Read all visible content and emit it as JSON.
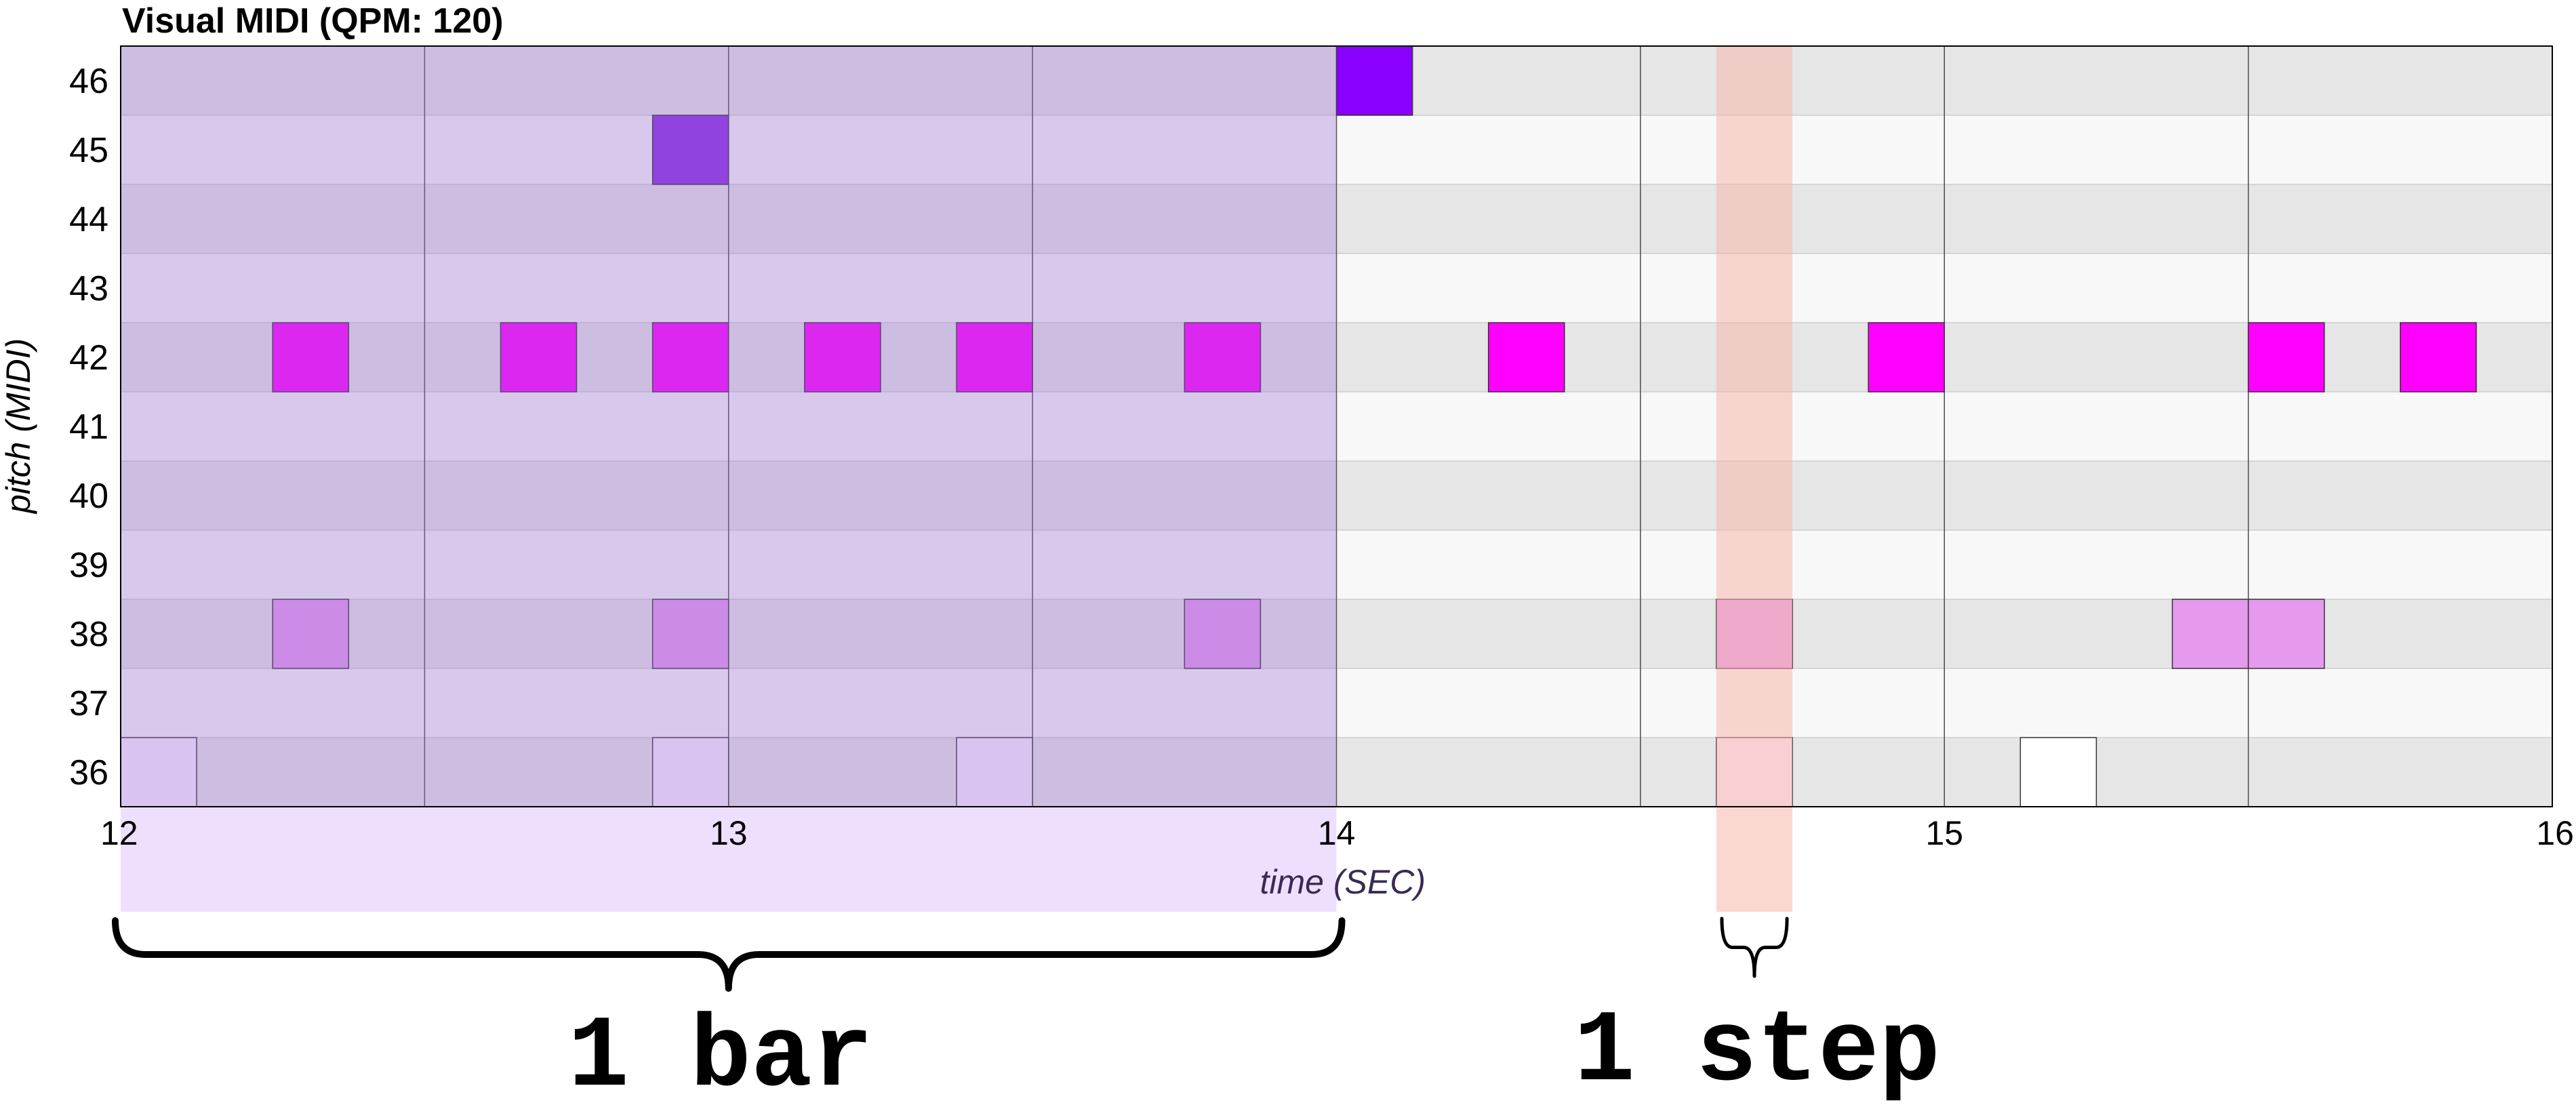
{
  "chart_data": {
    "type": "piano-roll",
    "title": "Visual MIDI (QPM: 120)",
    "xlabel": "time (SEC)",
    "ylabel": "pitch (MIDI)",
    "xlim": [
      12,
      16
    ],
    "ylim": [
      36,
      46
    ],
    "x_ticks": [
      "12",
      "13",
      "14",
      "15",
      "16"
    ],
    "y_ticks": [
      "36",
      "37",
      "38",
      "39",
      "40",
      "41",
      "42",
      "43",
      "44",
      "45",
      "46"
    ],
    "step_seconds": 0.125,
    "beat_seconds": 0.5,
    "bar_seconds": 2,
    "highlights": {
      "bar": {
        "start": 12,
        "end": 14,
        "label": "1 bar",
        "color": "#9b6fd6"
      },
      "step": {
        "start": 14.625,
        "end": 14.75,
        "label": "1 step",
        "color": "#f8b7ad"
      }
    },
    "notes": [
      {
        "pitch": 46,
        "start": 14.0,
        "end": 14.125,
        "color": "#8a00ff"
      },
      {
        "pitch": 45,
        "start": 12.875,
        "end": 13.0,
        "color": "#8b2be2"
      },
      {
        "pitch": 42,
        "start": 12.25,
        "end": 12.375,
        "color": "#ff00ff"
      },
      {
        "pitch": 42,
        "start": 12.625,
        "end": 12.75,
        "color": "#ff00ff"
      },
      {
        "pitch": 42,
        "start": 12.875,
        "end": 13.0,
        "color": "#ff00ff"
      },
      {
        "pitch": 42,
        "start": 13.125,
        "end": 13.25,
        "color": "#ff00ff"
      },
      {
        "pitch": 42,
        "start": 13.375,
        "end": 13.5,
        "color": "#ff00ff"
      },
      {
        "pitch": 42,
        "start": 13.75,
        "end": 13.875,
        "color": "#ff00ff"
      },
      {
        "pitch": 42,
        "start": 14.25,
        "end": 14.375,
        "color": "#ff00ff"
      },
      {
        "pitch": 42,
        "start": 14.875,
        "end": 15.0,
        "color": "#ff00ff"
      },
      {
        "pitch": 42,
        "start": 15.5,
        "end": 15.625,
        "color": "#ff00ff"
      },
      {
        "pitch": 42,
        "start": 15.75,
        "end": 15.875,
        "color": "#ff00ff"
      },
      {
        "pitch": 38,
        "start": 12.25,
        "end": 12.375,
        "color": "#e59aee"
      },
      {
        "pitch": 38,
        "start": 12.875,
        "end": 13.0,
        "color": "#e59aee"
      },
      {
        "pitch": 38,
        "start": 13.75,
        "end": 13.875,
        "color": "#e59aee"
      },
      {
        "pitch": 38,
        "start": 14.625,
        "end": 14.75,
        "color": "#e59aee"
      },
      {
        "pitch": 38,
        "start": 15.375,
        "end": 15.5,
        "color": "#e59aee"
      },
      {
        "pitch": 38,
        "start": 15.5,
        "end": 15.625,
        "color": "#e59aee"
      },
      {
        "pitch": 36,
        "start": 12.0,
        "end": 12.125,
        "color": "#fbf0ff"
      },
      {
        "pitch": 36,
        "start": 12.875,
        "end": 13.0,
        "color": "#fbf0ff"
      },
      {
        "pitch": 36,
        "start": 13.375,
        "end": 13.5,
        "color": "#fbf0ff"
      },
      {
        "pitch": 36,
        "start": 14.625,
        "end": 14.75,
        "color": "#fbf0ff"
      },
      {
        "pitch": 36,
        "start": 15.125,
        "end": 15.25,
        "color": "#ffffff"
      }
    ],
    "colors": {
      "row_even": "#e6e6e6",
      "row_odd": "#f8f8f8",
      "grid_line": "#4a4a4a",
      "xlabel_color": "#3b2a55"
    }
  }
}
